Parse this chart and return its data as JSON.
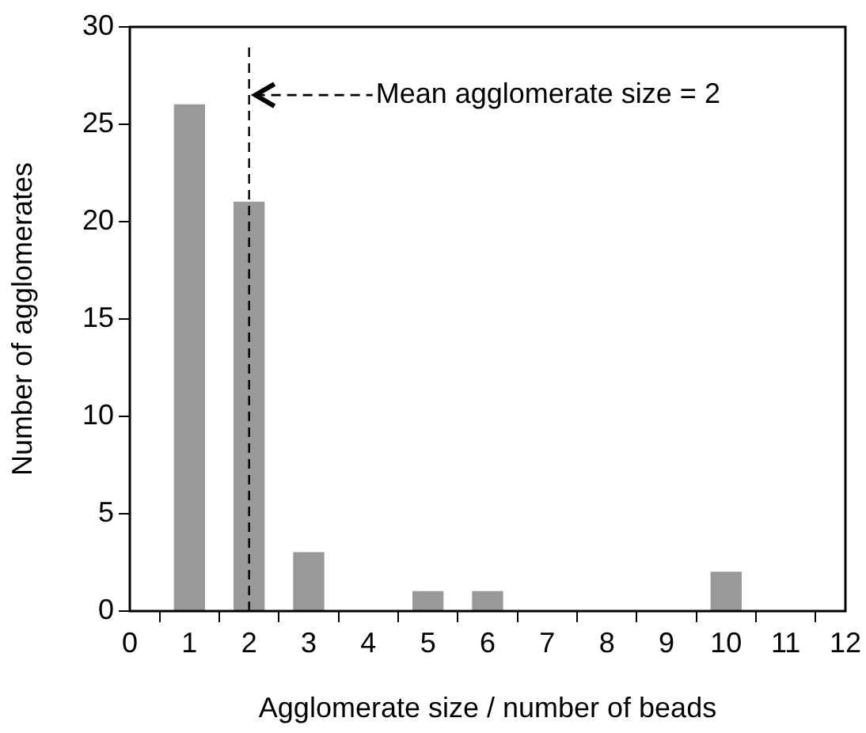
{
  "chart_data": {
    "type": "bar",
    "xlabel": "Agglomerate size / number of beads",
    "ylabel": "Number of agglomerates",
    "x": [
      1,
      2,
      3,
      5,
      6,
      10
    ],
    "values": [
      26,
      21,
      3,
      1,
      1,
      2
    ],
    "color": "#999999",
    "xlim": [
      0,
      12
    ],
    "xticks": [
      0,
      1,
      2,
      3,
      4,
      5,
      6,
      7,
      8,
      9,
      10,
      11,
      12
    ],
    "ylim": [
      0,
      30
    ],
    "yticks": [
      0,
      5,
      10,
      15,
      20,
      25,
      30
    ],
    "grid": false,
    "legend": false,
    "ref_lines": [
      {
        "axis": "x",
        "value": 2,
        "color": "#000000",
        "line_style": "dashed"
      }
    ],
    "annotations": [
      {
        "text": "Mean agglomerate size = 2",
        "x": 2,
        "y": 26.5
      }
    ]
  }
}
